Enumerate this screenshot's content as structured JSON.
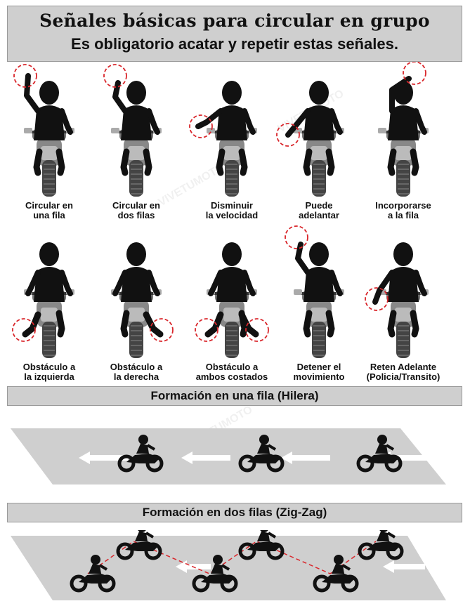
{
  "header": {
    "title": "Señales básicas para circular en grupo",
    "subtitle": "Es obligatorio acatar y repetir estas señales."
  },
  "signals_row1": [
    {
      "line1": "Circular en",
      "line2": "una fila"
    },
    {
      "line1": "Circular en",
      "line2": "dos filas"
    },
    {
      "line1": "Disminuir",
      "line2": "la velocidad"
    },
    {
      "line1": "Puede",
      "line2": "adelantar"
    },
    {
      "line1": "Incorporarse",
      "line2": "a la fila"
    }
  ],
  "signals_row2": [
    {
      "line1": "Obstáculo a",
      "line2": "la izquierda"
    },
    {
      "line1": "Obstáculo a",
      "line2": "la derecha"
    },
    {
      "line1": "Obstáculo a",
      "line2": "ambos costados"
    },
    {
      "line1": "Detener el",
      "line2": "movimiento"
    },
    {
      "line1": "Reten Adelante",
      "line2": "(Policia/Transito)"
    }
  ],
  "section_single": {
    "title": "Formación en una fila (Hilera)"
  },
  "section_double": {
    "title": "Formación en dos filas (Zig-Zag)"
  },
  "watermark": "VIVETUMOTO",
  "colors": {
    "figure": "#111111",
    "highlight": "#d9262b",
    "band": "#cfcfcf",
    "road": "#cfcfcf"
  }
}
